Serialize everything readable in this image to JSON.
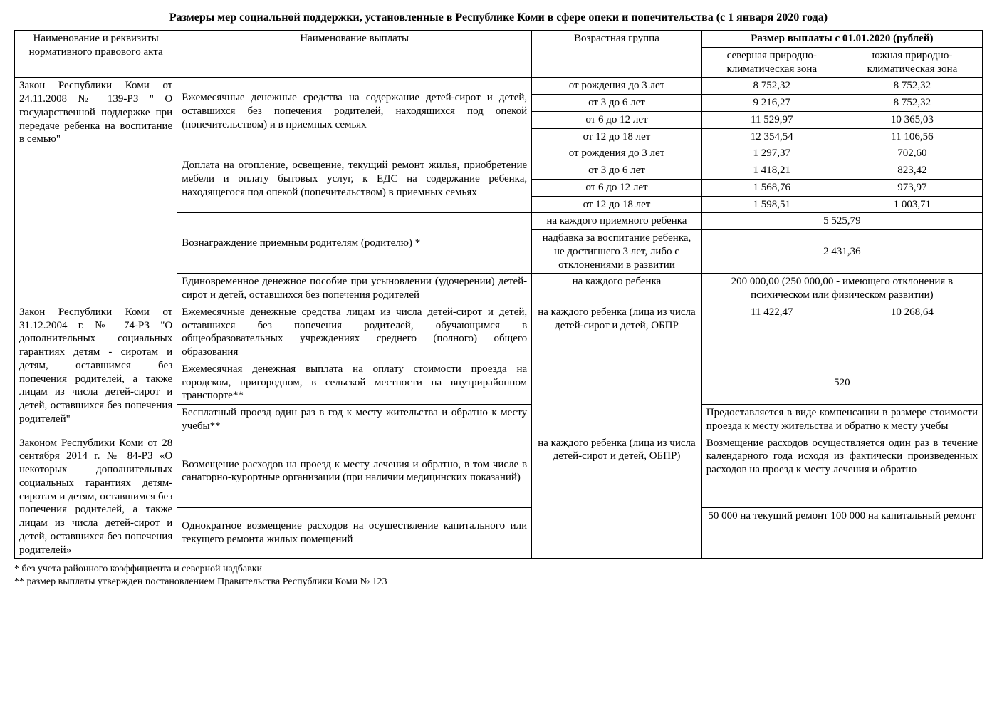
{
  "title": "Размеры мер социальной поддержки, установленные в Республике Коми в сфере опеки и попечительства (с 1 января 2020 года)",
  "header": {
    "col1": "Наименование и реквизиты нормативного правового акта",
    "col2": "Наименование выплаты",
    "col3": "Возрастная группа",
    "col4_merged": "Размер выплаты с 01.01.2020 (рублей)",
    "col4a": "северная природно-климатическая зона",
    "col4b": "южная природно-климатическая зона"
  },
  "law1": {
    "name": "Закон Республики Коми от 24.11.2008 № 139-РЗ \" О государственной поддержке при передаче ребенка на воспитание в семью\"",
    "pay1_name": "Ежемесячные денежные средства на содержание детей-сирот и детей, оставшихся без попечения родителей, находящихся под опекой (попечительством) и в приемных семьях",
    "pay1": {
      "r0_age": "от рождения до 3 лет",
      "r0_n": "8 752,32",
      "r0_s": "8 752,32",
      "r1_age": "от 3 до 6 лет",
      "r1_n": "9 216,27",
      "r1_s": "8 752,32",
      "r2_age": "от 6 до 12 лет",
      "r2_n": "11 529,97",
      "r2_s": "10 365,03",
      "r3_age": "от 12 до 18 лет",
      "r3_n": "12 354,54",
      "r3_s": "11 106,56"
    },
    "pay2_name": "Доплата на отопление, освещение, текущий ремонт жилья, приобретение мебели и оплату бытовых услуг, к ЕДС на содержание ребенка, находящегося под опекой (попечительством) в приемных семьях",
    "pay2": {
      "r0_age": "от рождения до 3 лет",
      "r0_n": "1 297,37",
      "r0_s": "702,60",
      "r1_age": "от 3 до 6 лет",
      "r1_n": "1 418,21",
      "r1_s": "823,42",
      "r2_age": "от 6 до 12 лет",
      "r2_n": "1 568,76",
      "r2_s": "973,97",
      "r3_age": "от 12 до 18 лет",
      "r3_n": "1 598,51",
      "r3_s": "1 003,71"
    },
    "pay3_name": "Вознаграждение приемным родителям (родителю) *",
    "pay3": {
      "r0_age": "на каждого приемного ребенка",
      "r0_val": "5 525,79",
      "r1_age": "надбавка за воспитание ребенка, не достигшего 3 лет, либо с отклонениями в развитии",
      "r1_val": "2 431,36"
    },
    "pay4_name": "Единовременное денежное пособие при усыновлении (удочерении) детей-сирот и детей, оставшихся без попечения родителей",
    "pay4_age": "на каждого ребенка",
    "pay4_val": "200 000,00 (250 000,00 - имеющего отклонения в психическом или физическом развитии)"
  },
  "law2": {
    "name": "Закон Республики Коми от 31.12.2004 г. № 74-РЗ \"О дополнительных социальных гарантиях детям - сиротам и детям, оставшимся без попечения родителей, а также лицам из числа детей-сирот и детей, оставшихся без попечения родителей\"",
    "pay1_name": "Ежемесячные денежные средства лицам из числа детей-сирот и детей, оставшихся без попечения родителей, обучающимся в общеобразовательных учреждениях среднего (полного) общего образования",
    "age_group": "на каждого ребенка (лица из числа детей-сирот и детей, ОБПР",
    "pay1_n": "11 422,47",
    "pay1_s": "10 268,64",
    "pay2_name": "Ежемесячная денежная выплата на оплату стоимости проезда на городском, пригородном, в сельской местности на внутрирайонном транспорте**",
    "pay2_val": "520",
    "pay3_name": "Бесплатный проезд один раз в год к месту жительства и обратно к месту учебы**",
    "pay3_val": "Предоставляется в виде компенсации в размере стоимости проезда к месту жительства и обратно к месту учебы"
  },
  "law3": {
    "name": "Законом Республики Коми от 28 сентября 2014 г. № 84-РЗ «О некоторых дополнительных социальных гарантиях детям-сиротам и детям, оставшимся без попечения родителей, а также лицам из числа детей-сирот и детей, оставшихся без попечения родителей»",
    "pay1_name": "Возмещение расходов на проезд к месту лечения и обратно, в том числе в санаторно-курортные организации (при наличии медицинских показаний)",
    "age_group": "на каждого ребенка (лица из числа детей-сирот и детей, ОБПР)",
    "pay1_val": "Возмещение расходов осуществляется один раз в течение календарного года исходя из фактически произведенных расходов на проезд к месту лечения и обратно",
    "pay2_name": "Однократное возмещение расходов на осуществление капитального или текущего ремонта жилых помещений",
    "pay2_val": "50 000 на текущий ремонт 100 000 на капитальный ремонт"
  },
  "footnotes": {
    "f1": "* без учета районного коэффициента и северной надбавки",
    "f2": "** размер выплаты утвержден постановлением Правительства Республики Коми № 123"
  }
}
